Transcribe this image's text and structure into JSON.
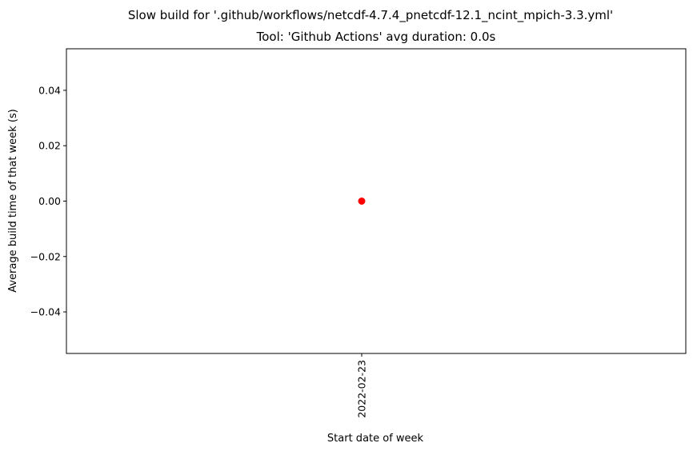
{
  "chart_data": {
    "type": "scatter",
    "suptitle": "Slow build for '.github/workflows/netcdf-4.7.4_pnetcdf-12.1_ncint_mpich-3.3.yml'",
    "title": "Tool: 'Github Actions' avg duration: 0.0s",
    "xlabel": "Start date of week",
    "ylabel": "Average build time of that week (s)",
    "x": [
      "2022-02-23"
    ],
    "y": [
      0.0
    ],
    "ylim": [
      -0.055,
      0.055
    ],
    "yticks": [
      -0.04,
      -0.02,
      0.0,
      0.02,
      0.04
    ],
    "ytick_labels": [
      "−0.04",
      "−0.02",
      "0.00",
      "0.02",
      "0.04"
    ],
    "xtick_labels": [
      "2022-02-23"
    ],
    "marker_color": "#ff0000",
    "grid": false,
    "legend": "none"
  }
}
